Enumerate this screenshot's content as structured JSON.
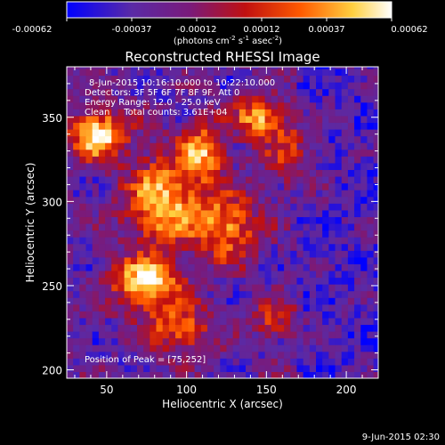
{
  "chart_data": {
    "type": "heatmap",
    "title": "Reconstructed RHESSI Image",
    "xlabel": "Heliocentric X (arcsec)",
    "ylabel": "Heliocentric Y (arcsec)",
    "xlim": [
      25,
      220
    ],
    "ylim": [
      195,
      380
    ],
    "xticks": [
      50,
      100,
      150,
      200
    ],
    "yticks": [
      200,
      250,
      300,
      350
    ],
    "colorbar": {
      "colormap": "blue-purple-red-yellow-white",
      "min": -0.00062,
      "max": 0.00062,
      "ticks": [
        "-0.00062",
        "-0.00037",
        "-0.00012",
        "0.00012",
        "0.00037",
        "0.00062"
      ],
      "label_prefix": "(photons cm",
      "label_exp1": "-2",
      "label_mid": " s",
      "label_exp2": "-1",
      "label_mid2": " asec",
      "label_exp3": "-2",
      "label_suffix": ")",
      "stops": [
        "#0000ff",
        "#5a2aa6",
        "#7a1a7a",
        "#c01010",
        "#ff5a00",
        "#ffd040",
        "#ffffff"
      ]
    },
    "info_lines": [
      "8-Jun-2015 10:16:10.000 to 10:22:10.000",
      "Detectors: 3F 5F 6F 7F 8F 9F, Att 0",
      "Energy Range: 12.0 - 25.0 keV",
      "Clean     Total counts: 3.61E+04"
    ],
    "peak_label": "Position of Peak = [75,252]",
    "peak": [
      75,
      252
    ],
    "grid_cell_arcsec": 4,
    "hot_regions": [
      {
        "x": 45,
        "y": 340,
        "sx": 12,
        "sy": 10,
        "amp": 0.95
      },
      {
        "x": 75,
        "y": 252,
        "sx": 14,
        "sy": 10,
        "amp": 1.0
      },
      {
        "x": 85,
        "y": 300,
        "sx": 16,
        "sy": 18,
        "amp": 0.85
      },
      {
        "x": 110,
        "y": 330,
        "sx": 10,
        "sy": 12,
        "amp": 0.75
      },
      {
        "x": 125,
        "y": 285,
        "sx": 14,
        "sy": 14,
        "amp": 0.7
      },
      {
        "x": 95,
        "y": 225,
        "sx": 14,
        "sy": 10,
        "amp": 0.6
      },
      {
        "x": 145,
        "y": 350,
        "sx": 10,
        "sy": 8,
        "amp": 0.75
      },
      {
        "x": 155,
        "y": 230,
        "sx": 10,
        "sy": 8,
        "amp": 0.45
      },
      {
        "x": 165,
        "y": 330,
        "sx": 12,
        "sy": 14,
        "amp": 0.4
      }
    ]
  },
  "footer_timestamp": "9-Jun-2015 02:30"
}
